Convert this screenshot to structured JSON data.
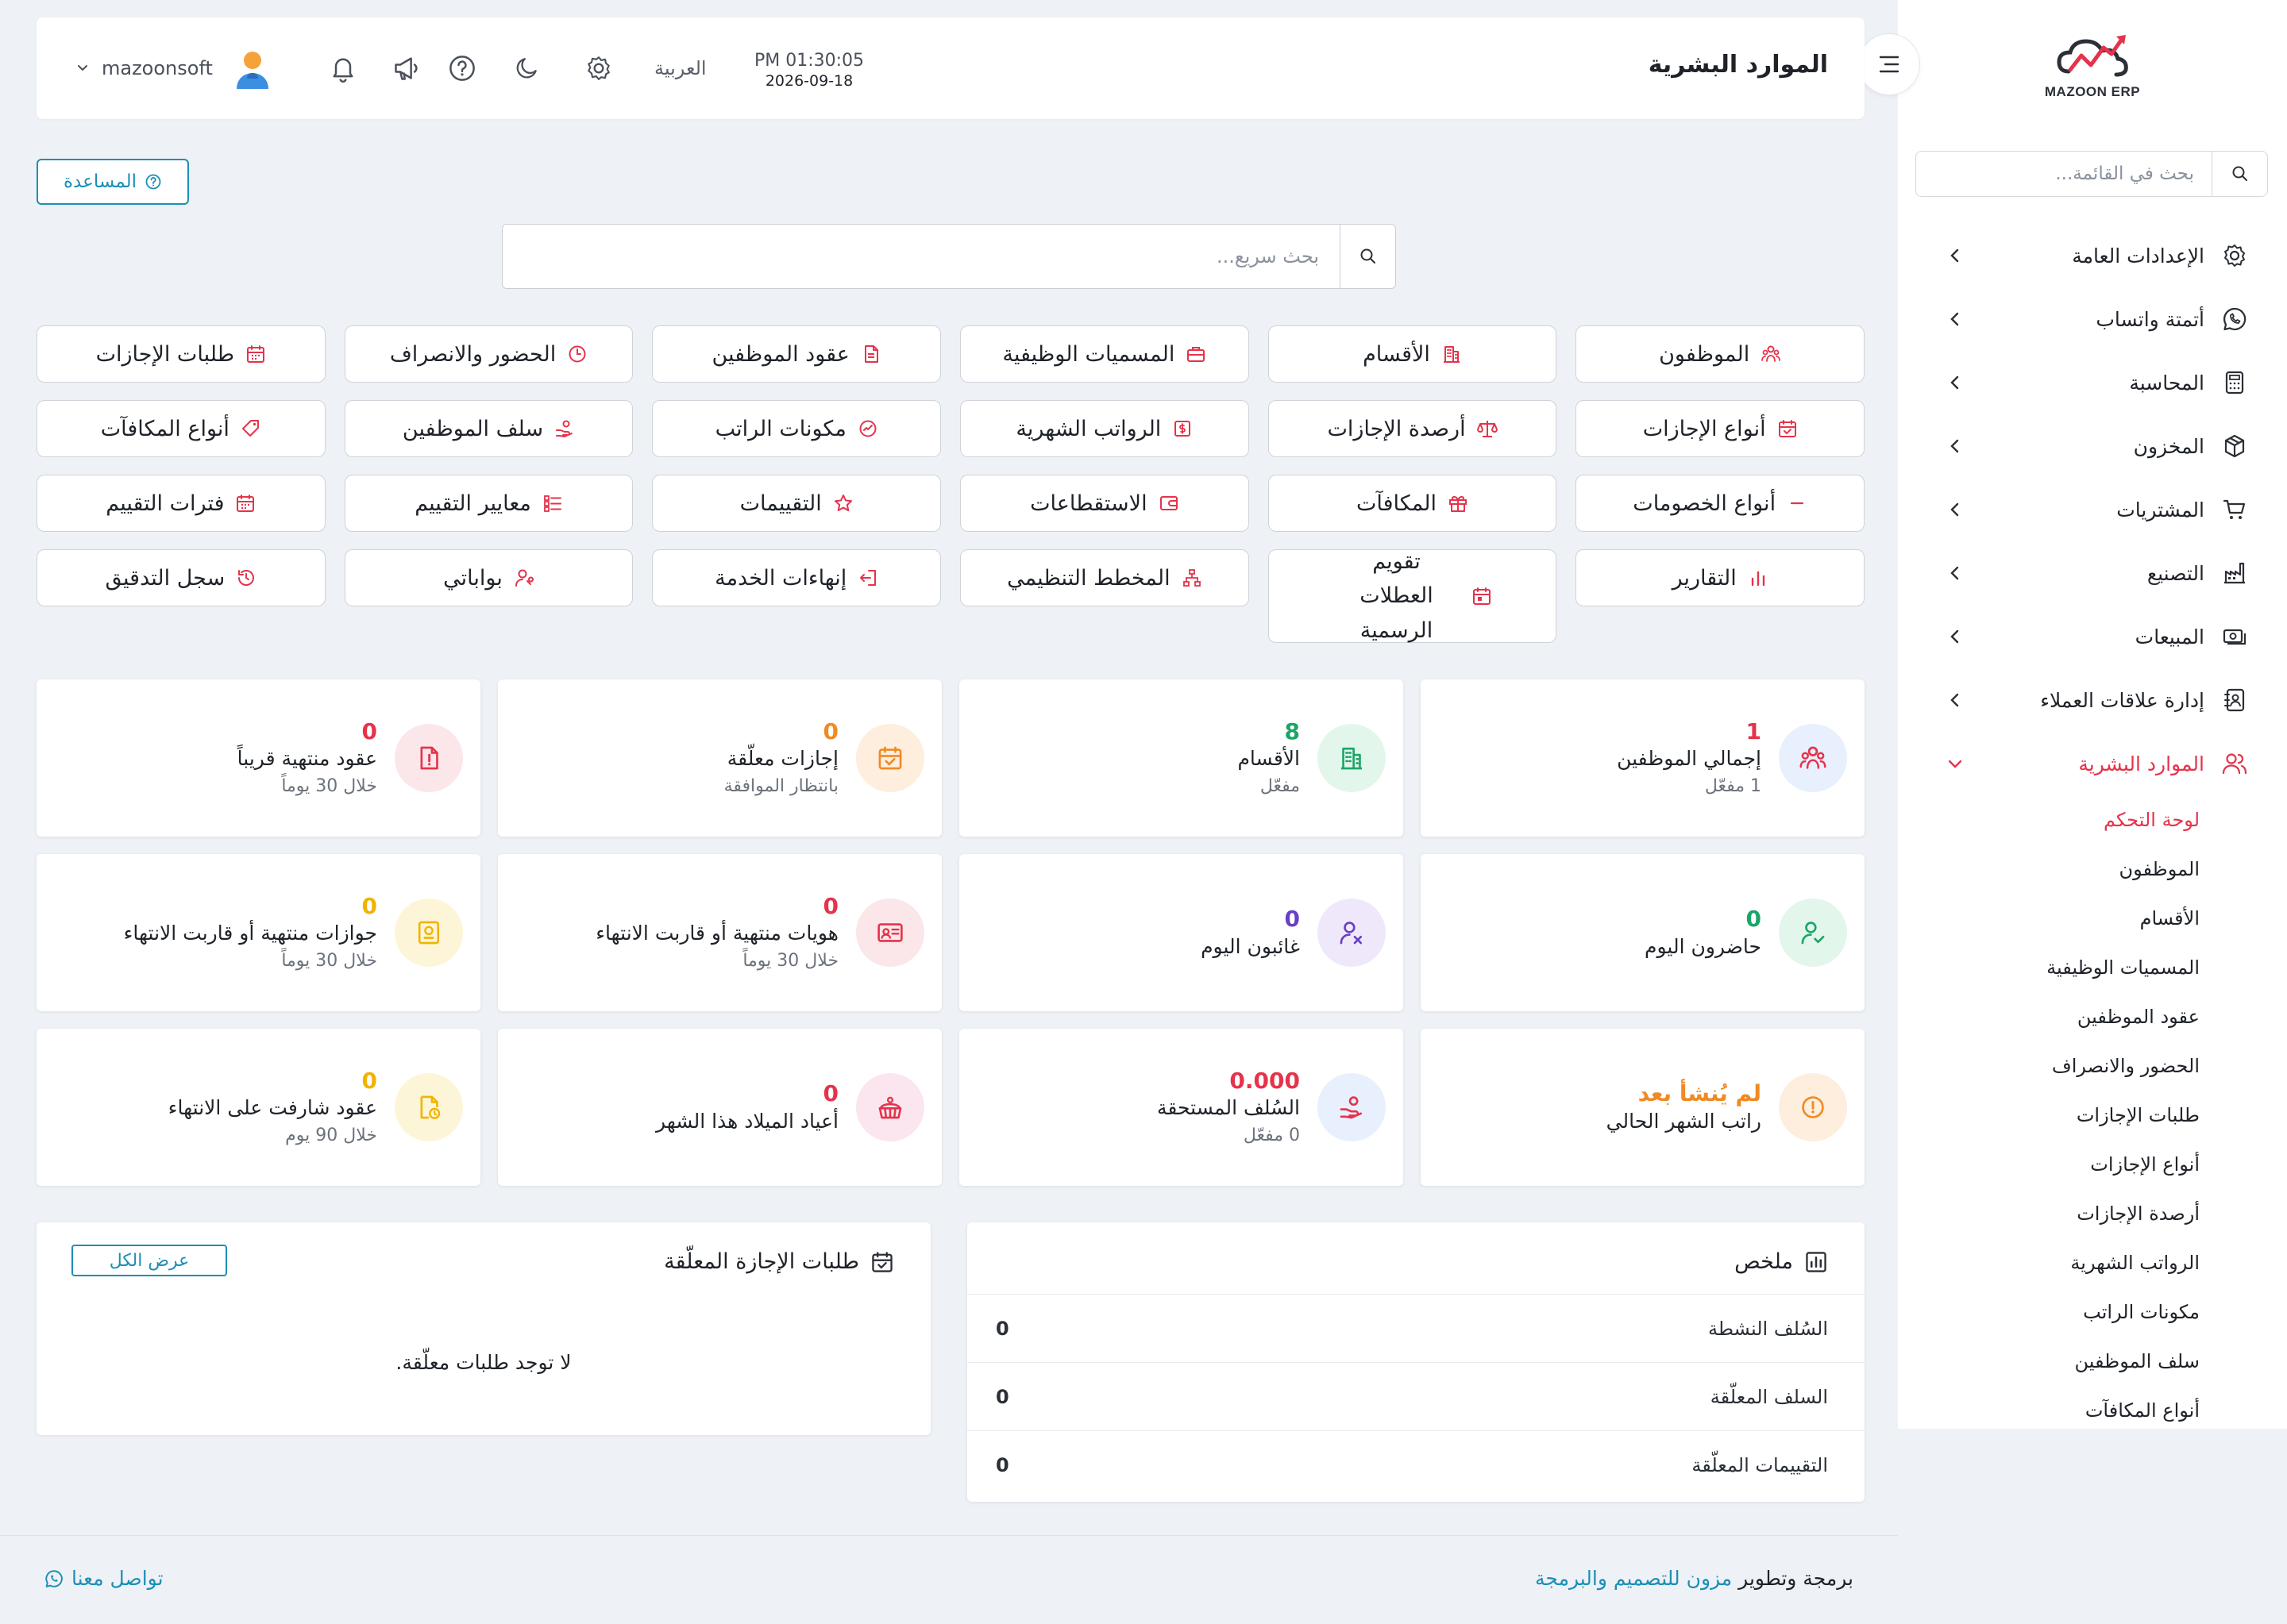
{
  "brand": {
    "name": "MAZOON ERP"
  },
  "sidebar": {
    "search_placeholder": "بحث في القائمة...",
    "items": [
      {
        "label": "الإعدادات العامة",
        "icon": "gear-icon"
      },
      {
        "label": "أتمتة واتساب",
        "icon": "whatsapp-icon"
      },
      {
        "label": "المحاسبة",
        "icon": "calculator-icon"
      },
      {
        "label": "المخزون",
        "icon": "box-icon"
      },
      {
        "label": "المشتريات",
        "icon": "cart-icon"
      },
      {
        "label": "التصنيع",
        "icon": "factory-icon"
      },
      {
        "label": "المبيعات",
        "icon": "cash-icon"
      },
      {
        "label": "إدارة علاقات العملاء",
        "icon": "contacts-icon"
      },
      {
        "label": "الموارد البشرية",
        "icon": "users-icon"
      }
    ],
    "sub_items": [
      "لوحة التحكم",
      "الموظفون",
      "الأقسام",
      "المسميات الوظيفية",
      "عقود الموظفين",
      "الحضور والانصراف",
      "طلبات الإجازات",
      "أنواع الإجازات",
      "أرصدة الإجازات",
      "الرواتب الشهرية",
      "مكونات الراتب",
      "سلف الموظفين",
      "أنواع المكافآت"
    ]
  },
  "header": {
    "title": "الموارد البشرية",
    "time": "PM 01:30:05",
    "date": "2026-09-18",
    "language": "العربية",
    "user_name": "mazoonsoft"
  },
  "help_label": "المساعدة",
  "quick_search_placeholder": "بحث سريع...",
  "quick_links": [
    "الموظفون",
    "الأقسام",
    "المسميات الوظيفية",
    "عقود الموظفين",
    "الحضور والانصراف",
    "طلبات الإجازات",
    "أنواع الإجازات",
    "أرصدة الإجازات",
    "الرواتب الشهرية",
    "مكونات الراتب",
    "سلف الموظفين",
    "أنواع المكافآت",
    "أنواع الخصومات",
    "المكافآت",
    "الاستقطاعات",
    "التقييمات",
    "معايير التقييم",
    "فترات التقييم",
    "التقارير",
    "تقويم العطلات الرسمية",
    "المخطط التنظيمي",
    "إنهاءات الخدمة",
    "بواباتي",
    "سجل التدقيق"
  ],
  "stats": [
    {
      "value": "1",
      "title": "إجمالي الموظفين",
      "sub": "1 مفعّل",
      "color": "#e5334b"
    },
    {
      "value": "8",
      "title": "الأقسام",
      "sub": "مفعّل",
      "color": "#1aa567"
    },
    {
      "value": "0",
      "title": "إجازات معلّقة",
      "sub": "بانتظار الموافقة",
      "color": "#f08a24"
    },
    {
      "value": "0",
      "title": "عقود منتهية قريباً",
      "sub": "خلال 30 يوماً",
      "color": "#e5334b"
    },
    {
      "value": "0",
      "title": "حاضرون اليوم",
      "sub": "",
      "color": "#1aa567"
    },
    {
      "value": "0",
      "title": "غائبون اليوم",
      "sub": "",
      "color": "#6a3fc4"
    },
    {
      "value": "0",
      "title": "هويات منتهية أو قاربت الانتهاء",
      "sub": "خلال 30 يوماً",
      "color": "#e5334b"
    },
    {
      "value": "0",
      "title": "جوازات منتهية أو قاربت الانتهاء",
      "sub": "خلال 30 يوماً",
      "color": "#f0b400"
    },
    {
      "value": "لم يُنشأ بعد",
      "title": "راتب الشهر الحالي",
      "sub": "",
      "color": "#f08a24"
    },
    {
      "value": "0.000",
      "title": "السُلف المستحقة",
      "sub": "0 مفعّل",
      "color": "#e5334b"
    },
    {
      "value": "0",
      "title": "أعياد الميلاد هذا الشهر",
      "sub": "",
      "color": "#e5334b"
    },
    {
      "value": "0",
      "title": "عقود شارفت على الانتهاء",
      "sub": "خلال 90 يوم",
      "color": "#f0b400"
    }
  ],
  "summary": {
    "title": "ملخص",
    "rows": [
      {
        "label": "السُلف النشطة",
        "value": "0"
      },
      {
        "label": "السلف المعلّقة",
        "value": "0"
      },
      {
        "label": "التقييمات المعلّقة",
        "value": "0"
      }
    ]
  },
  "pending_leaves": {
    "title": "طلبات الإجازة المعلّقة",
    "view_all": "عرض الكل",
    "empty": "لا توجد طلبات معلّقة."
  },
  "footer": {
    "credit_prefix": "برمجة وتطوير",
    "credit_link": "مزون للتصميم والبرمجة",
    "contact": "تواصل معنا"
  },
  "colors": {
    "accent": "#e5334b",
    "link": "#1b8fb5",
    "background": "#eef1f6"
  }
}
